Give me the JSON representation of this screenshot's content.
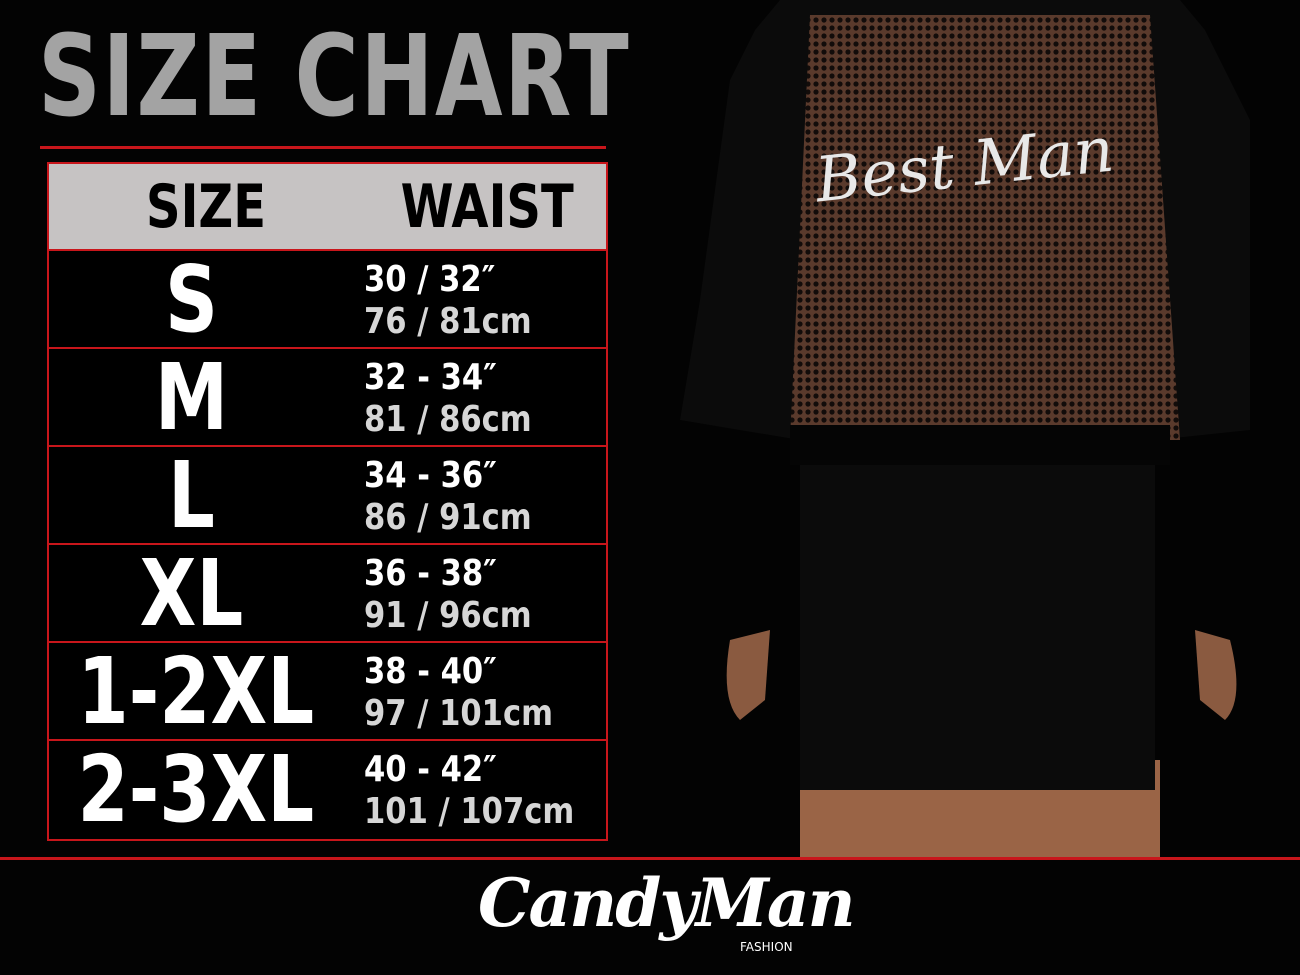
{
  "title": "SIZE CHART",
  "table": {
    "headers": {
      "size": "SIZE",
      "waist": "WAIST"
    },
    "rows": [
      {
        "size": "S",
        "waist_in": "30 / 32″",
        "waist_cm": "76 / 81cm"
      },
      {
        "size": "M",
        "waist_in": "32 - 34″",
        "waist_cm": "81 / 86cm"
      },
      {
        "size": "L",
        "waist_in": "34 - 36″",
        "waist_cm": "86 / 91cm"
      },
      {
        "size": "XL",
        "waist_in": "36 - 38″",
        "waist_cm": "91 / 96cm"
      },
      {
        "size": "1-2XL",
        "waist_in": "38 - 40″",
        "waist_cm": "97 / 101cm"
      },
      {
        "size": "2-3XL",
        "waist_in": "40 - 42″",
        "waist_cm": "101 / 107cm"
      }
    ]
  },
  "product": {
    "print_text": "Best Man"
  },
  "brand": {
    "name": "CandyMan",
    "sub": "FASHION"
  },
  "colors": {
    "accent": "#c8161b",
    "header_bg": "#c6c3c3",
    "title": "#a3a3a3"
  }
}
